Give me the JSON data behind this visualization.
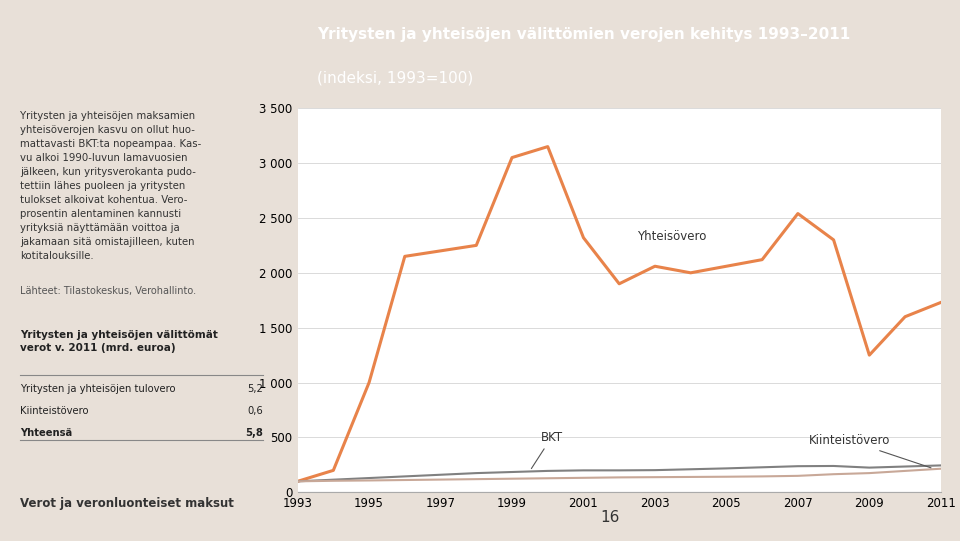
{
  "title_line1": "Yritysten ja yhteisöjen välittömien verojen kehitys 1993–2011",
  "title_line2": "(indeksi, 1993=100)",
  "header_bg": "#E8834A",
  "left_panel_bg": "#E8E0D8",
  "chart_bg": "#FFFFFF",
  "years": [
    1993,
    1994,
    1995,
    1996,
    1997,
    1998,
    1999,
    2000,
    2001,
    2002,
    2003,
    2004,
    2005,
    2006,
    2007,
    2008,
    2009,
    2010,
    2011
  ],
  "yhteisovero": [
    100,
    200,
    1000,
    2150,
    2200,
    2250,
    3050,
    3150,
    2320,
    1900,
    2060,
    2000,
    2060,
    2120,
    2540,
    2300,
    1250,
    1600,
    1730
  ],
  "bkt": [
    100,
    115,
    130,
    145,
    160,
    175,
    185,
    195,
    200,
    200,
    202,
    210,
    218,
    228,
    238,
    240,
    225,
    235,
    245
  ],
  "kiinteistovero": [
    100,
    105,
    108,
    112,
    116,
    120,
    124,
    128,
    132,
    136,
    138,
    140,
    142,
    145,
    150,
    165,
    175,
    195,
    215
  ],
  "yhteisovero_color": "#E8834A",
  "bkt_color": "#808080",
  "kiinteistovero_color": "#C8A898",
  "ylim": [
    0,
    3500
  ],
  "yticks": [
    0,
    500,
    1000,
    1500,
    2000,
    2500,
    3000,
    3500
  ],
  "xticks": [
    1993,
    1995,
    1997,
    1999,
    2001,
    2003,
    2005,
    2007,
    2009,
    2011
  ],
  "left_text_body": "Yritysten ja yhteisöjen maksamien\nyhteisöverojen kasvu on ollut huo-\nmattavasti BKT:ta nopeampaa. Kas-\nvu alkoi 1990-luvun lamavuosien\njälkeen, kun yritysverokanta pudo-\ntettiin lähes puoleen ja yritysten\ntulokset alkoivat kohentua. Vero-\nprosentin alentaminen kannusti\nyrityksiä näyttämään voittoa ja\njakamaan sitä omistajilleen, kuten\nkotitalouksille.",
  "source_text": "Lähteet: Tilastokeskus, Verohallinto.",
  "table_title": "Yritysten ja yhteisöjen välittömät\nverot v. 2011 (mrd. euroa)",
  "table_rows": [
    [
      "Yritysten ja yhteisöjen tulovero",
      "5,2"
    ],
    [
      "Kiinteistövero",
      "0,6"
    ],
    [
      "Yhteensä",
      "5,8"
    ]
  ],
  "footer_text": "Verot ja veronluonteiset maksut",
  "footer_page": "16",
  "yhteisovero_label": "Yhteisövero",
  "bkt_label": "BKT",
  "kiinteistovero_label": "Kiinteistövero"
}
